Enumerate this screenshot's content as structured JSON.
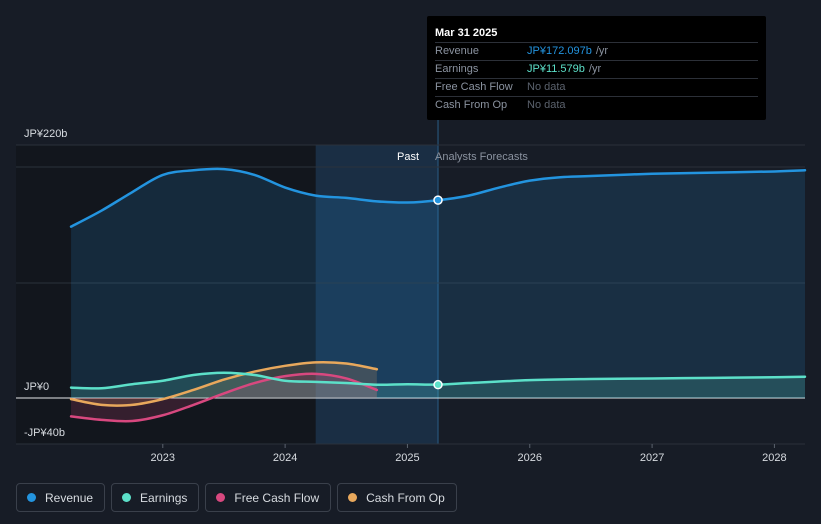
{
  "colors": {
    "background": "#171c26",
    "revenue": "#2394df",
    "earnings": "#5ce0c9",
    "free_cash_flow": "#d8487f",
    "cash_from_op": "#e8a85c",
    "past_highlight": "#1d3e5c"
  },
  "tooltip": {
    "date": "Mar 31 2025",
    "rows": [
      {
        "label": "Revenue",
        "value": "JP¥172.097b",
        "unit": "/yr",
        "has_data": true
      },
      {
        "label": "Earnings",
        "value": "JP¥11.579b",
        "unit": "/yr",
        "has_data": true
      },
      {
        "label": "Free Cash Flow",
        "value": "No data",
        "unit": "",
        "has_data": false
      },
      {
        "label": "Cash From Op",
        "value": "No data",
        "unit": "",
        "has_data": false
      }
    ]
  },
  "section_labels": {
    "past": "Past",
    "forecast": "Analysts Forecasts"
  },
  "legend": [
    {
      "label": "Revenue",
      "color": "#2394df"
    },
    {
      "label": "Earnings",
      "color": "#5ce0c9"
    },
    {
      "label": "Free Cash Flow",
      "color": "#d8487f"
    },
    {
      "label": "Cash From Op",
      "color": "#e8a85c"
    }
  ],
  "chart_data": {
    "type": "line",
    "title": "",
    "xlabel": "",
    "ylabel": "",
    "unit": "JP¥ billions",
    "y_tick_labels": [
      "JP¥220b",
      "JP¥0",
      "-JP¥40b"
    ],
    "y_ticks": [
      220,
      0,
      -40
    ],
    "ylim": [
      -40,
      220
    ],
    "x_tick_labels": [
      "2023",
      "2024",
      "2025",
      "2026",
      "2027",
      "2028"
    ],
    "x_ticks": [
      2023,
      2024,
      2025,
      2026,
      2027,
      2028
    ],
    "xlim": [
      2021.8,
      2028.25
    ],
    "past_start": 2024.25,
    "forecast_start": 2025.25,
    "grid": true,
    "legend_position": "bottom-left",
    "series": [
      {
        "name": "Revenue",
        "color": "#2394df",
        "area": true,
        "x": [
          2022.25,
          2022.5,
          2022.75,
          2023.0,
          2023.25,
          2023.5,
          2023.75,
          2024.0,
          2024.25,
          2024.5,
          2024.75,
          2025.0,
          2025.25,
          2025.5,
          2025.75,
          2026.0,
          2026.25,
          2026.5,
          2027.0,
          2027.5,
          2028.0,
          2028.25
        ],
        "y": [
          149,
          163,
          179,
          194,
          198,
          199,
          194,
          183,
          176,
          174,
          171,
          170,
          172,
          176,
          183,
          189,
          192,
          193,
          195,
          196,
          197,
          198
        ]
      },
      {
        "name": "Earnings",
        "color": "#5ce0c9",
        "area": true,
        "x": [
          2022.25,
          2022.5,
          2022.75,
          2023.0,
          2023.25,
          2023.5,
          2023.75,
          2024.0,
          2024.25,
          2024.5,
          2024.75,
          2025.0,
          2025.25,
          2025.5,
          2026.0,
          2026.5,
          2027.0,
          2027.5,
          2028.0,
          2028.25
        ],
        "y": [
          9,
          8.5,
          12,
          15,
          20,
          22,
          20,
          15,
          14,
          13,
          11.5,
          12,
          11.6,
          13,
          15.5,
          16.5,
          17,
          17.5,
          18,
          18.5
        ]
      },
      {
        "name": "Free Cash Flow",
        "color": "#d8487f",
        "area": true,
        "x": [
          2022.25,
          2022.5,
          2022.75,
          2023.0,
          2023.25,
          2023.5,
          2023.75,
          2024.0,
          2024.25,
          2024.5,
          2024.75
        ],
        "y": [
          -16,
          -19,
          -20,
          -15,
          -6,
          4,
          13,
          19,
          21,
          17,
          7
        ]
      },
      {
        "name": "Cash From Op",
        "color": "#e8a85c",
        "area": true,
        "x": [
          2022.25,
          2022.5,
          2022.75,
          2023.0,
          2023.25,
          2023.5,
          2023.75,
          2024.0,
          2024.25,
          2024.5,
          2024.75
        ],
        "y": [
          -1,
          -6,
          -6,
          -1,
          7,
          16,
          23,
          28,
          31,
          30,
          25
        ]
      }
    ],
    "highlight_points": [
      {
        "series": "Revenue",
        "x": 2025.25,
        "y": 172.097
      },
      {
        "series": "Earnings",
        "x": 2025.25,
        "y": 11.579
      }
    ]
  }
}
